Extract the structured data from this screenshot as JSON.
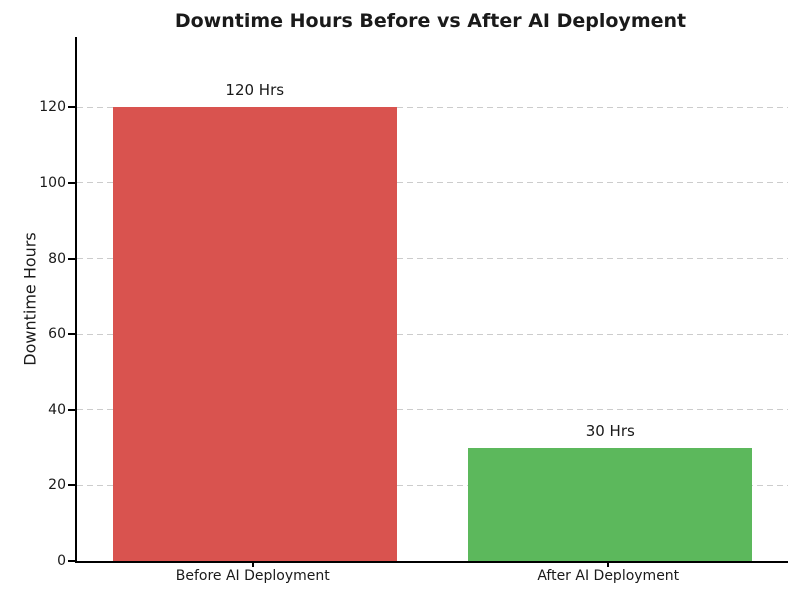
{
  "chart_data": {
    "type": "bar",
    "title": "Downtime Hours Before vs After AI Deployment",
    "xlabel": "",
    "ylabel": "Downtime Hours",
    "categories": [
      "Before AI Deployment",
      "After AI Deployment"
    ],
    "values": [
      120,
      30
    ],
    "bar_labels": [
      "120 Hrs",
      "30 Hrs"
    ],
    "bar_colors": [
      "#d9534f",
      "#5cb85c"
    ],
    "yticks": [
      0,
      20,
      40,
      60,
      80,
      100,
      120
    ],
    "ylim": [
      0,
      138.6
    ],
    "xlim": [
      -0.5,
      1.5
    ],
    "bar_width": 0.8,
    "grid": "horizontal-dashed",
    "grid_color": "#cccccc",
    "legend": "none",
    "text_color": "#1a1a1a",
    "background_color": "#ffffff"
  }
}
